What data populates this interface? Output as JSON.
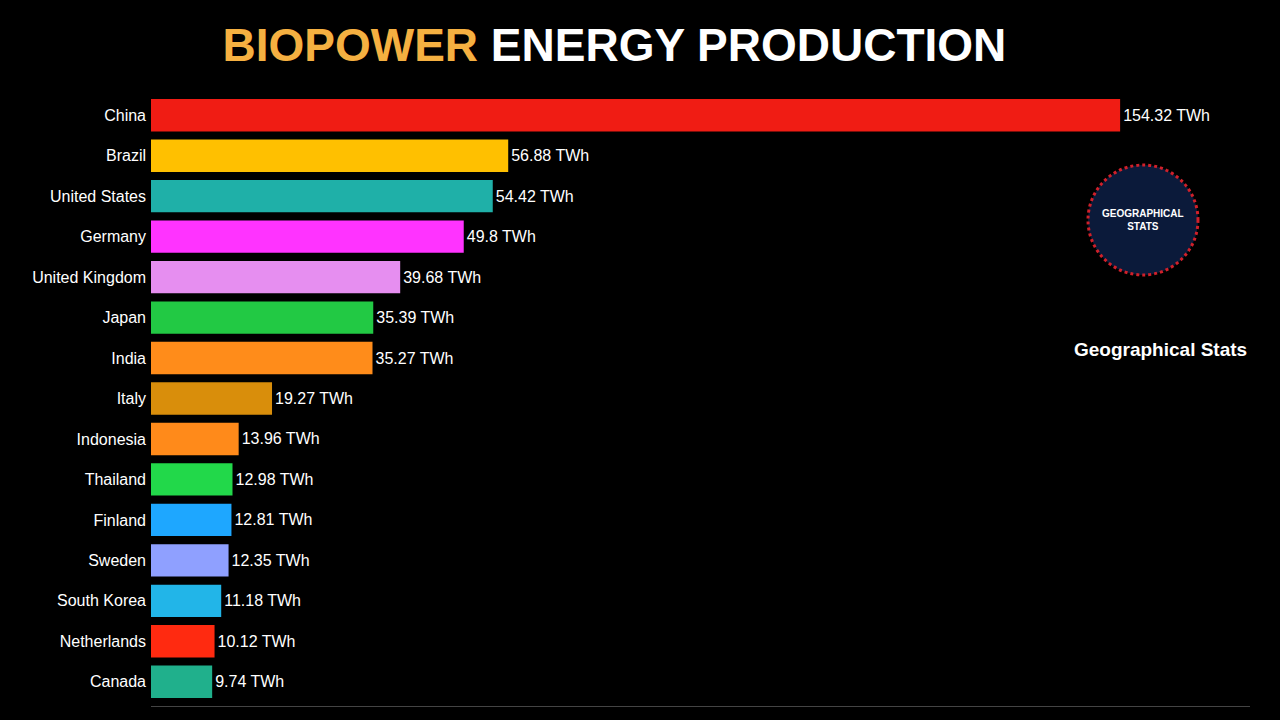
{
  "chart_data": {
    "type": "bar",
    "orientation": "horizontal",
    "title": "BIOPOWER ENERGY PRODUCTION",
    "categories": [
      "China",
      "Brazil",
      "United States",
      "Germany",
      "United Kingdom",
      "Japan",
      "India",
      "Italy",
      "Indonesia",
      "Thailand",
      "Finland",
      "Sweden",
      "South Korea",
      "Netherlands",
      "Canada"
    ],
    "values": [
      154.32,
      56.88,
      54.42,
      49.8,
      39.68,
      35.39,
      35.27,
      19.27,
      13.96,
      12.98,
      12.81,
      12.35,
      11.18,
      10.12,
      9.74
    ],
    "value_labels": [
      "154.32 TWh",
      "56.88 TWh",
      "54.42 TWh",
      "49.8 TWh",
      "39.68 TWh",
      "35.39 TWh",
      "35.27 TWh",
      "19.27 TWh",
      "13.96 TWh",
      "12.98 TWh",
      "12.81 TWh",
      "12.35 TWh",
      "11.18 TWh",
      "10.12 TWh",
      "9.74 TWh"
    ],
    "colors": [
      "#f01c14",
      "#ffc000",
      "#1fb0a8",
      "#ff33ff",
      "#e68ef0",
      "#22c944",
      "#ff8c1a",
      "#d98e0b",
      "#ff8a1a",
      "#22d84a",
      "#1ea7ff",
      "#8fa0ff",
      "#22b5e8",
      "#ff2a10",
      "#20b08c"
    ],
    "xlim": [
      0,
      175
    ],
    "xticks": [],
    "data_labels": true,
    "tick_labels": "y",
    "grid": false,
    "annotations": [
      "GEOGRAPHICAL STATS",
      "Geographical Stats"
    ]
  }
}
